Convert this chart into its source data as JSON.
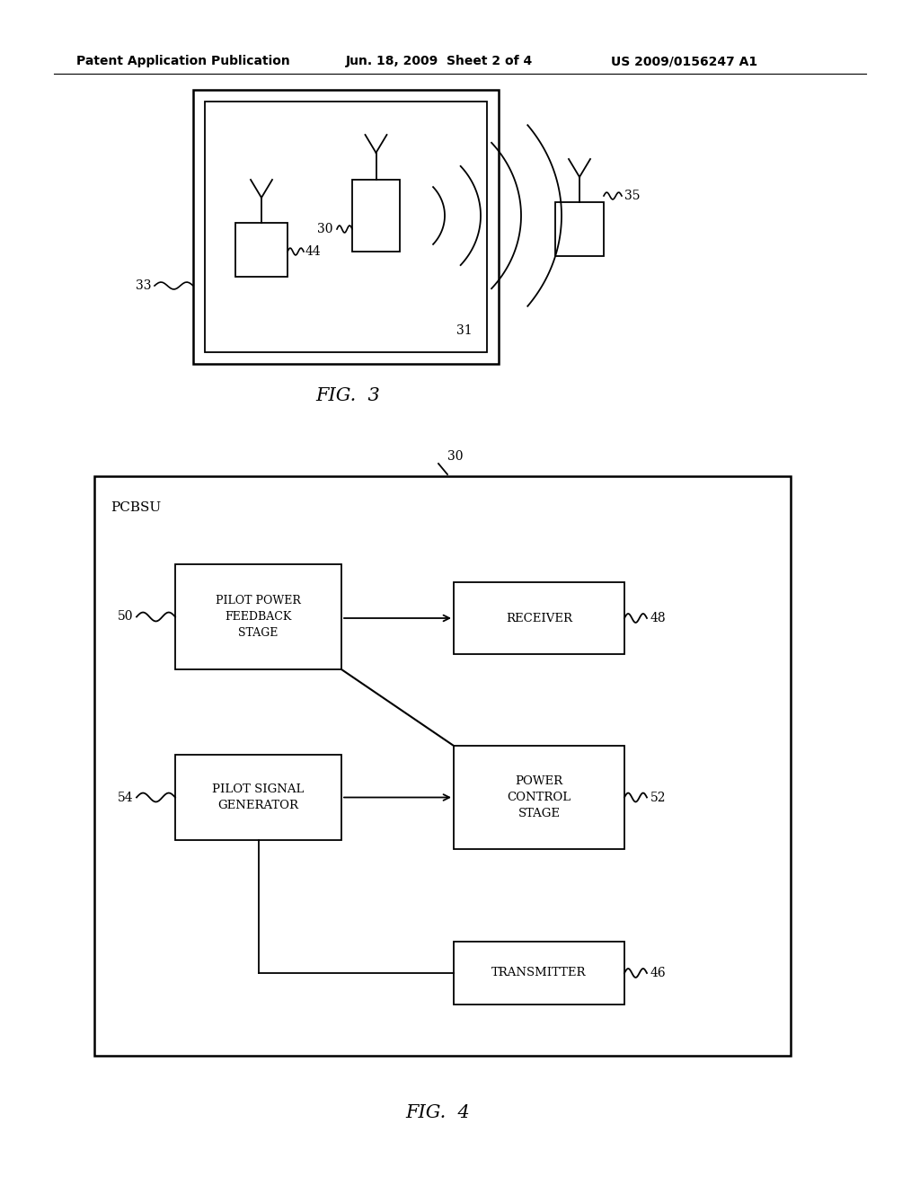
{
  "bg_color": "#ffffff",
  "header_line1": "Patent Application Publication",
  "header_line2": "Jun. 18, 2009  Sheet 2 of 4",
  "header_line3": "US 2009/0156247 A1",
  "fig3_label": "FIG.  3",
  "fig4_label": "FIG.  4",
  "pcbsu_label": "PCBSU",
  "label_30": "30",
  "label_31": "31",
  "label_33": "33",
  "label_35": "35",
  "label_44": "44",
  "label_46": "46",
  "label_48": "48",
  "label_50": "50",
  "label_52": "52",
  "label_54": "54"
}
